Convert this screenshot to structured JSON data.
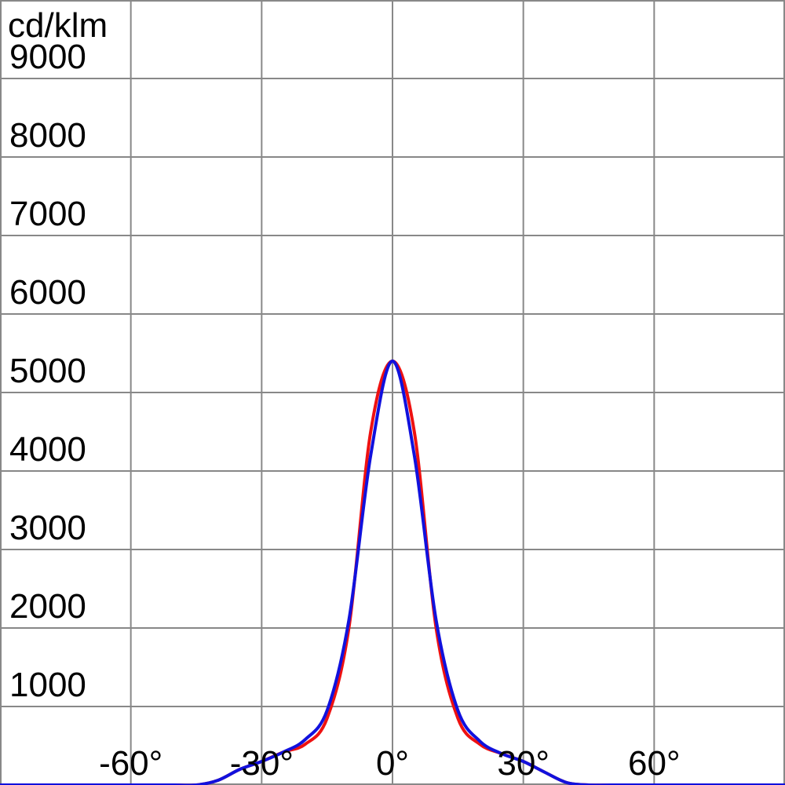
{
  "chart_data": {
    "type": "line",
    "y_label": "cd/klm",
    "x": [
      -90,
      -85,
      -80,
      -75,
      -70,
      -65,
      -60,
      -55,
      -50,
      -45,
      -40,
      -35,
      -30,
      -25,
      -20,
      -15,
      -10,
      -5,
      0,
      5,
      10,
      15,
      20,
      25,
      30,
      35,
      40,
      45,
      50,
      55,
      60,
      65,
      70,
      75,
      80,
      85,
      90
    ],
    "series": [
      {
        "color": "#ee1111",
        "values": [
          0,
          0,
          0,
          0,
          0,
          0,
          0,
          0,
          0,
          0,
          60,
          200,
          300,
          420,
          520,
          850,
          2000,
          4500,
          5400,
          4500,
          2000,
          850,
          520,
          400,
          300,
          160,
          30,
          0,
          0,
          0,
          0,
          0,
          0,
          0,
          0,
          0,
          0
        ]
      },
      {
        "color": "#1111dd",
        "values": [
          0,
          0,
          0,
          0,
          0,
          0,
          0,
          0,
          0,
          0,
          60,
          200,
          300,
          420,
          580,
          950,
          2100,
          4200,
          5400,
          4200,
          2100,
          950,
          560,
          400,
          300,
          160,
          30,
          0,
          0,
          0,
          0,
          0,
          0,
          0,
          0,
          0,
          0
        ]
      }
    ],
    "xlim": [
      -90,
      90
    ],
    "xticks": [
      {
        "value": -60,
        "label": "-60°"
      },
      {
        "value": -30,
        "label": "-30°"
      },
      {
        "value": 0,
        "label": "0°"
      },
      {
        "value": 30,
        "label": "30°"
      },
      {
        "value": 60,
        "label": "60°"
      }
    ],
    "ylim": [
      0,
      10000
    ],
    "yticks": [
      1000,
      2000,
      3000,
      4000,
      5000,
      6000,
      7000,
      8000,
      9000
    ],
    "grid": true
  }
}
